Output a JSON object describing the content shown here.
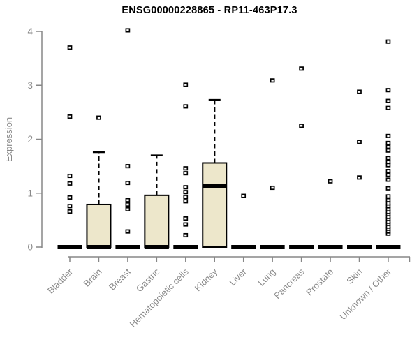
{
  "chart_data": {
    "type": "boxplot",
    "title": "ENSG00000228865 - RP11-463P17.3",
    "xlabel": "",
    "ylabel": "Expression",
    "ylim": [
      0,
      4
    ],
    "yticks": [
      0,
      1,
      2,
      3,
      4
    ],
    "grid": false,
    "legend": "none",
    "colors": {
      "background": "#ffffff",
      "box_fill": "#ede7cb",
      "box_stroke": "#000000",
      "median": "#000000",
      "whisker": "#000000",
      "outlier": "#000000",
      "axis": "#878787",
      "tick_label": "#8a8a8a",
      "title": "#000000"
    },
    "categories": [
      "Bladder",
      "Brain",
      "Breast",
      "Gastric",
      "Hematopoietic cells",
      "Kidney",
      "Liver",
      "Lung",
      "Pancreas",
      "Prostate",
      "Skin",
      "Unknown / Other"
    ],
    "series": [
      {
        "label": "Bladder",
        "q1": 0,
        "median": 0,
        "q3": 0,
        "whisker_low": 0,
        "whisker_high": 0,
        "outliers": [
          0.66,
          0.76,
          0.92,
          1.18,
          1.32,
          2.42,
          3.7
        ]
      },
      {
        "label": "Brain",
        "q1": 0,
        "median": 0,
        "q3": 0.79,
        "whisker_low": 0,
        "whisker_high": 1.76,
        "outliers": [
          2.4
        ]
      },
      {
        "label": "Breast",
        "q1": 0,
        "median": 0,
        "q3": 0,
        "whisker_low": 0,
        "whisker_high": 0,
        "outliers": [
          0.29,
          0.7,
          0.79,
          0.87,
          1.19,
          1.5,
          4.02
        ]
      },
      {
        "label": "Gastric",
        "q1": 0,
        "median": 0,
        "q3": 0.96,
        "whisker_low": 0,
        "whisker_high": 1.7,
        "outliers": []
      },
      {
        "label": "Hematopoietic cells",
        "q1": 0,
        "median": 0,
        "q3": 0,
        "whisker_low": 0,
        "whisker_high": 0,
        "outliers": [
          0.22,
          0.42,
          0.53,
          0.85,
          0.93,
          1.02,
          1.11,
          1.37,
          1.46,
          2.61,
          3.01
        ]
      },
      {
        "label": "Kidney",
        "q1": 0,
        "median": 1.13,
        "q3": 1.56,
        "whisker_low": 0,
        "whisker_high": 2.73,
        "outliers": []
      },
      {
        "label": "Liver",
        "q1": 0,
        "median": 0,
        "q3": 0,
        "whisker_low": 0,
        "whisker_high": 0,
        "outliers": [
          0.95
        ]
      },
      {
        "label": "Lung",
        "q1": 0,
        "median": 0,
        "q3": 0,
        "whisker_low": 0,
        "whisker_high": 0,
        "outliers": [
          1.1,
          3.09
        ]
      },
      {
        "label": "Pancreas",
        "q1": 0,
        "median": 0,
        "q3": 0,
        "whisker_low": 0,
        "whisker_high": 0,
        "outliers": [
          2.25,
          3.31
        ]
      },
      {
        "label": "Prostate",
        "q1": 0,
        "median": 0,
        "q3": 0,
        "whisker_low": 0,
        "whisker_high": 0,
        "outliers": [
          1.22
        ]
      },
      {
        "label": "Skin",
        "q1": 0,
        "median": 0,
        "q3": 0,
        "whisker_low": 0,
        "whisker_high": 0,
        "outliers": [
          1.29,
          1.95,
          2.88
        ]
      },
      {
        "label": "Unknown / Other",
        "q1": 0,
        "median": 0,
        "q3": 0,
        "whisker_low": 0,
        "whisker_high": 0,
        "outliers": [
          0.25,
          0.29,
          0.34,
          0.38,
          0.43,
          0.47,
          0.52,
          0.56,
          0.61,
          0.65,
          0.7,
          0.76,
          0.81,
          0.87,
          0.94,
          1.09,
          1.25,
          1.34,
          1.41,
          1.52,
          1.58,
          1.65,
          1.79,
          1.86,
          1.93,
          2.06,
          2.58,
          2.71,
          2.91,
          3.81
        ]
      }
    ]
  }
}
